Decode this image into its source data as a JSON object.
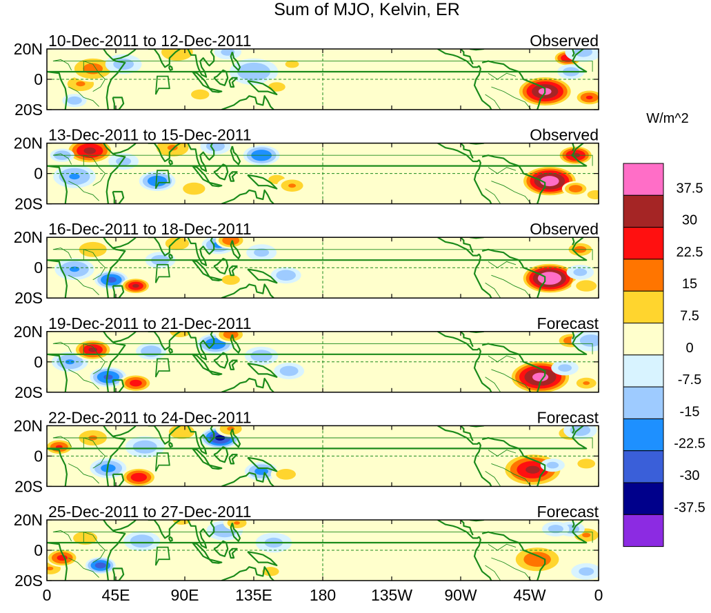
{
  "title": "Sum of MJO, Kelvin, ER",
  "colorbar": {
    "unit": "W/m^2",
    "colors": [
      "#8c2be2",
      "#00008b",
      "#3a5fd9",
      "#1e90ff",
      "#9ecbff",
      "#d8f3ff",
      "#ffffcc",
      "#ffd52e",
      "#ff7500",
      "#ff1010",
      "#a52525",
      "#ff6ec7"
    ],
    "labels": [
      "-37.5",
      "-30",
      "-22.5",
      "-15",
      "-7.5",
      "0",
      "7.5",
      "15",
      "22.5",
      "30",
      "37.5"
    ]
  },
  "lat_labels": [
    "20N",
    "0",
    "20S"
  ],
  "lon_labels": [
    "0",
    "45E",
    "90E",
    "135E",
    "180",
    "135W",
    "90W",
    "45W",
    "0"
  ],
  "panels": [
    {
      "period": "10-Dec-2011 to 12-Dec-2011",
      "status": "Observed"
    },
    {
      "period": "13-Dec-2011 to 15-Dec-2011",
      "status": "Observed"
    },
    {
      "period": "16-Dec-2011 to 18-Dec-2011",
      "status": "Observed"
    },
    {
      "period": "19-Dec-2011 to 21-Dec-2011",
      "status": "Forecast"
    },
    {
      "period": "22-Dec-2011 to 24-Dec-2011",
      "status": "Forecast"
    },
    {
      "period": "25-Dec-2011 to 27-Dec-2011",
      "status": "Forecast"
    }
  ],
  "anomalies": [
    [
      [
        -35,
        -8,
        1.9,
        3.8
      ],
      [
        -20,
        14,
        1.0,
        2.9
      ],
      [
        -6,
        -12,
        1.0,
        2.3
      ],
      [
        -18,
        5,
        0.9,
        -1.2
      ],
      [
        22,
        -3,
        1.2,
        1.6
      ],
      [
        18,
        -14,
        0.8,
        -1.2
      ],
      [
        30,
        7,
        1.6,
        1.8
      ],
      [
        50,
        10,
        1.2,
        -1.1
      ],
      [
        85,
        18,
        1.6,
        1.3
      ],
      [
        100,
        -10,
        1.2,
        1.0
      ],
      [
        118,
        18,
        0.9,
        -1.0
      ],
      [
        135,
        5,
        1.6,
        -1.4
      ],
      [
        150,
        -5,
        1.0,
        1.1
      ],
      [
        160,
        10,
        0.9,
        1.0
      ],
      [
        -10,
        18,
        1.2,
        -1.0
      ]
    ],
    [
      [
        -32,
        -5,
        1.9,
        4.2
      ],
      [
        -15,
        12,
        1.2,
        3.2
      ],
      [
        -15,
        -10,
        0.9,
        2.0
      ],
      [
        -2,
        -14,
        0.8,
        1.4
      ],
      [
        18,
        -2,
        1.4,
        -1.6
      ],
      [
        28,
        15,
        1.6,
        3.2
      ],
      [
        10,
        12,
        0.8,
        -1.5
      ],
      [
        50,
        8,
        1.0,
        -1.0
      ],
      [
        82,
        17,
        1.5,
        1.5
      ],
      [
        72,
        -5,
        1.2,
        -2.1
      ],
      [
        96,
        -10,
        1.3,
        1.1
      ],
      [
        110,
        18,
        1.0,
        -1.2
      ],
      [
        140,
        12,
        1.2,
        -2.2
      ],
      [
        150,
        -4,
        0.9,
        1.2
      ],
      [
        160,
        -8,
        1.0,
        1.6
      ]
    ],
    [
      [
        -32,
        -7,
        1.9,
        4.5
      ],
      [
        -12,
        12,
        1.0,
        1.8
      ],
      [
        -8,
        -12,
        1.0,
        1.4
      ],
      [
        18,
        -1,
        1.3,
        -1.6
      ],
      [
        42,
        -8,
        1.1,
        -2.5
      ],
      [
        58,
        -12,
        1.0,
        3.0
      ],
      [
        30,
        12,
        1.4,
        1.3
      ],
      [
        74,
        5,
        1.0,
        -1.2
      ],
      [
        85,
        16,
        1.2,
        1.3
      ],
      [
        112,
        15,
        1.1,
        -1.7
      ],
      [
        120,
        18,
        1.0,
        2.2
      ],
      [
        140,
        10,
        1.0,
        -1.0
      ],
      [
        156,
        -5,
        1.0,
        -1.3
      ],
      [
        120,
        -8,
        1.2,
        1.0
      ],
      [
        -12,
        -3,
        0.9,
        -1.0
      ]
    ],
    [
      [
        -38,
        -10,
        2.1,
        4.0
      ],
      [
        -18,
        14,
        1.0,
        2.0
      ],
      [
        -8,
        -14,
        0.9,
        1.6
      ],
      [
        15,
        0,
        1.2,
        -1.6
      ],
      [
        40,
        -10,
        1.2,
        -2.4
      ],
      [
        58,
        -14,
        1.1,
        2.6
      ],
      [
        30,
        8,
        1.3,
        3.0
      ],
      [
        68,
        7,
        1.0,
        -1.4
      ],
      [
        87,
        20,
        1.0,
        1.4
      ],
      [
        110,
        12,
        1.2,
        -2.2
      ],
      [
        120,
        18,
        1.0,
        2.0
      ],
      [
        140,
        4,
        1.1,
        -1.3
      ],
      [
        158,
        -6,
        1.0,
        -1.2
      ],
      [
        -5,
        14,
        1.3,
        -1.1
      ],
      [
        -22,
        -4,
        0.9,
        -1.0
      ]
    ],
    [
      [
        -43,
        -9,
        2.1,
        3.0
      ],
      [
        -18,
        15,
        1.1,
        1.6
      ],
      [
        -8,
        -5,
        0.9,
        1.3
      ],
      [
        8,
        6,
        1.0,
        2.3
      ],
      [
        40,
        -8,
        1.2,
        -1.8
      ],
      [
        60,
        -14,
        1.2,
        2.8
      ],
      [
        30,
        12,
        1.3,
        1.5
      ],
      [
        64,
        6,
        1.3,
        -1.2
      ],
      [
        88,
        16,
        1.3,
        1.3
      ],
      [
        113,
        12,
        1.3,
        -3.2
      ],
      [
        120,
        18,
        1.0,
        1.6
      ],
      [
        140,
        -10,
        1.1,
        -1.8
      ],
      [
        156,
        -12,
        1.0,
        1.3
      ],
      [
        -12,
        17,
        1.1,
        -1.2
      ],
      [
        -30,
        -6,
        0.8,
        -1.0
      ]
    ],
    [
      [
        -40,
        -6,
        1.8,
        2.0
      ],
      [
        -8,
        10,
        1.1,
        1.6
      ],
      [
        -18,
        14,
        0.9,
        -1.2
      ],
      [
        2,
        -12,
        1.0,
        1.5
      ],
      [
        10,
        -5,
        1.1,
        2.5
      ],
      [
        25,
        8,
        1.3,
        1.2
      ],
      [
        35,
        -10,
        1.0,
        -2.6
      ],
      [
        62,
        6,
        1.2,
        -1.3
      ],
      [
        88,
        20,
        0.9,
        1.3
      ],
      [
        116,
        13,
        1.2,
        -1.4
      ],
      [
        124,
        18,
        0.9,
        1.5
      ],
      [
        146,
        -14,
        0.9,
        1.2
      ],
      [
        148,
        5,
        1.2,
        -1.0
      ],
      [
        -28,
        14,
        0.9,
        -1.1
      ],
      [
        -8,
        -14,
        1.0,
        -1.0
      ]
    ]
  ]
}
